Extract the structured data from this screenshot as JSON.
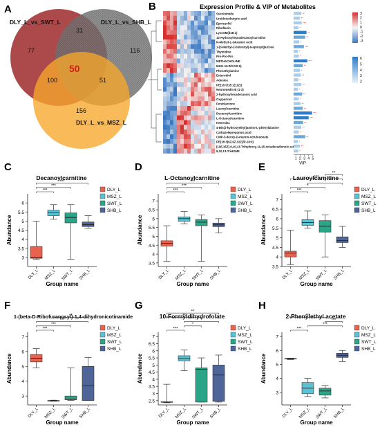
{
  "panel_letters": [
    "A",
    "B",
    "C",
    "D",
    "E",
    "F",
    "G",
    "H"
  ],
  "venn": {
    "sets": [
      {
        "label": "DLY_L_vs_SWT_L",
        "color": "#9e2a2b"
      },
      {
        "label": "DLY_L_vs_SHB_L",
        "color": "#6f6f6f"
      },
      {
        "label": "DLY_L_vs_MSZ_L",
        "color": "#f7a62c"
      }
    ],
    "counts": {
      "swt_only": "77",
      "shb_only": "116",
      "msz_only": "156",
      "swt_shb": "31",
      "swt_msz": "100",
      "shb_msz": "51",
      "all": "50"
    }
  },
  "heatmap": {
    "title": "Expression Profile & VIP of Metabolites",
    "metabolites": [
      "Succinimide",
      "Ureidoisobutyric acid",
      "Eperezolid",
      "Riboflavin",
      "LysoSM(d18:1)",
      "12-Hydroxyheptadecanoylcarnitine",
      "N-Methyl-L-Glutamic Acid",
      "1-(3-Methyl-2-butenoyl)-6-apiosylglucose",
      "Thymidine",
      "Pro-Pro-Pro",
      "METHACHOLINE",
      "MGG-15:0/0:0/0:0)",
      "Phenethylamine",
      "Enterodiol",
      "Adenine",
      "PE(16:0/18:1(11Z))",
      "Neuromedin B (1-3)",
      "2-hydroxyhexadecanoic acid",
      "Oxypurinol",
      "Pentolactone",
      "Lauroylcarnitine",
      "Decanoylcarnitine",
      "L-Octanoylcarnitine",
      "Ketorolac",
      "4-Bis(2-hydroxyethyl)amino-L-phenylalanine",
      "Carbazeleprepanoic acid",
      "CMP-3-deoxy-D-manno-octulosonate",
      "PE(18:3(6Z,9Z,12Z)/P-18:0)",
      "(11E,15Z)-9,10,13-Trihydroxy-11,15-octadecadienoic acid",
      "9,10,13-TriHOME"
    ],
    "vip": [
      2.3,
      2.0,
      2.4,
      1.6,
      3.5,
      3.2,
      1.8,
      2.9,
      1.5,
      1.7,
      3.7,
      2.6,
      2.0,
      2.2,
      1.6,
      2.3,
      1.5,
      2.5,
      1.7,
      2.1,
      2.6,
      4.8,
      4.0,
      2.7,
      2.3,
      1.7,
      3.2,
      1.5,
      2.0,
      1.6
    ],
    "sig": [
      "**",
      "**",
      "***",
      "*",
      "**",
      "**",
      "*",
      "***",
      "*",
      "*",
      "***",
      "**",
      "*",
      "**",
      "*",
      "**",
      "*",
      "**",
      "*",
      "**",
      "**",
      "***",
      "***",
      "**",
      "**",
      "*",
      "**",
      "*",
      "**",
      "*"
    ],
    "vip_axis_label": "VIP",
    "vip_ticks": [
      "1",
      "2",
      "3",
      "4",
      "5"
    ],
    "legend_top": [
      "3",
      "2",
      "1",
      "0",
      "-1",
      "-2",
      "-3"
    ],
    "legend_bottom": [
      "6",
      "5",
      "4",
      "3",
      "2"
    ],
    "colors": {
      "low": "#3a78c1",
      "mid": "#f5f5f5",
      "high": "#d7312f"
    }
  },
  "chart_data": [
    {
      "type": "box",
      "panel": "C",
      "title": "Decanoylcarnitine",
      "xlabel": "Group name",
      "ylabel": "Abundance",
      "ylim": [
        2.5,
        6.5
      ],
      "yticks": [
        "3",
        "3.5",
        "4",
        "4.5",
        "5",
        "5.5",
        "6"
      ],
      "categories": [
        "DLY_L",
        "MSZ_L",
        "SWT_L",
        "SHB_L"
      ],
      "boxes": [
        {
          "min": 2.9,
          "q1": 2.95,
          "median": 3.0,
          "q3": 3.6,
          "max": 5.0
        },
        {
          "min": 5.1,
          "q1": 5.3,
          "median": 5.45,
          "q3": 5.6,
          "max": 5.9
        },
        {
          "min": 2.9,
          "q1": 4.9,
          "median": 5.2,
          "q3": 5.45,
          "max": 5.9
        },
        {
          "min": 4.6,
          "q1": 4.7,
          "median": 4.8,
          "q3": 4.95,
          "max": 5.3
        }
      ],
      "brackets": [
        {
          "from": 0,
          "to": 1,
          "label": "***"
        },
        {
          "from": 0,
          "to": 2,
          "label": "***"
        },
        {
          "from": 0,
          "to": 3,
          "label": "***"
        }
      ]
    },
    {
      "type": "box",
      "panel": "D",
      "title": "L-Octanoylcarnitine",
      "xlabel": "Group name",
      "ylabel": "Abundance",
      "ylim": [
        3.3,
        7.4
      ],
      "yticks": [
        "3.5",
        "4",
        "4.5",
        "5",
        "5.5",
        "6",
        "6.5",
        "7"
      ],
      "categories": [
        "DLY_L",
        "MSZ_L",
        "SWT_L",
        "SHB_L"
      ],
      "boxes": [
        {
          "min": 3.6,
          "q1": 4.45,
          "median": 4.6,
          "q3": 4.75,
          "max": 5.6
        },
        {
          "min": 5.7,
          "q1": 5.85,
          "median": 6.0,
          "q3": 6.1,
          "max": 6.4
        },
        {
          "min": 3.6,
          "q1": 5.6,
          "median": 5.8,
          "q3": 5.95,
          "max": 6.2
        },
        {
          "min": 5.2,
          "q1": 5.55,
          "median": 5.65,
          "q3": 5.75,
          "max": 6.0
        }
      ],
      "brackets": [
        {
          "from": 0,
          "to": 1,
          "label": "***"
        },
        {
          "from": 0,
          "to": 2,
          "label": "***"
        },
        {
          "from": 0,
          "to": 3,
          "label": "***"
        }
      ]
    },
    {
      "type": "box",
      "panel": "E",
      "title": "Lauroylcarnitine",
      "xlabel": "Group name",
      "ylabel": "Abundance",
      "ylim": [
        3.5,
        7.3
      ],
      "yticks": [
        "3.5",
        "4",
        "4.5",
        "5",
        "5.5",
        "6",
        "6.5",
        "7"
      ],
      "categories": [
        "DLY_L",
        "MSZ_L",
        "SWT_L",
        "SHB_L"
      ],
      "boxes": [
        {
          "min": 3.6,
          "q1": 4.0,
          "median": 4.2,
          "q3": 4.3,
          "max": 5.4
        },
        {
          "min": 5.5,
          "q1": 5.65,
          "median": 5.8,
          "q3": 5.95,
          "max": 6.4
        },
        {
          "min": 4.0,
          "q1": 5.3,
          "median": 5.6,
          "q3": 5.9,
          "max": 6.2
        },
        {
          "min": 4.5,
          "q1": 4.75,
          "median": 4.85,
          "q3": 5.05,
          "max": 5.6
        }
      ],
      "brackets": [
        {
          "from": 0,
          "to": 1,
          "label": "***"
        },
        {
          "from": 0,
          "to": 2,
          "label": "*"
        },
        {
          "from": 1,
          "to": 3,
          "label": "*"
        },
        {
          "from": 0,
          "to": 3,
          "label": "***"
        },
        {
          "from": 2,
          "to": 3,
          "label": "**"
        }
      ]
    },
    {
      "type": "box",
      "panel": "F",
      "title": "1-(beta-D-Ribofuranosyl)-1,4-dihydronicotinamide",
      "xlabel": "Group name",
      "ylabel": "Abundance",
      "ylim": [
        2.4,
        7.3
      ],
      "yticks": [
        "3",
        "4",
        "5",
        "6",
        "7"
      ],
      "categories": [
        "DLY_L",
        "MSZ_L",
        "SWT_L",
        "SHB_L"
      ],
      "boxes": [
        {
          "min": 4.9,
          "q1": 5.3,
          "median": 5.55,
          "q3": 5.8,
          "max": 6.2
        },
        {
          "min": 2.65,
          "q1": 2.67,
          "median": 2.68,
          "q3": 2.7,
          "max": 2.72
        },
        {
          "min": 2.7,
          "q1": 2.75,
          "median": 2.8,
          "q3": 3.0,
          "max": 4.9
        },
        {
          "min": 2.7,
          "q1": 2.7,
          "median": 3.7,
          "q3": 5.0,
          "max": 5.6
        }
      ],
      "brackets": [
        {
          "from": 0,
          "to": 1,
          "label": "***"
        },
        {
          "from": 0,
          "to": 2,
          "label": "***"
        },
        {
          "from": 0,
          "to": 3,
          "label": "***"
        },
        {
          "from": 1,
          "to": 3,
          "label": "**"
        }
      ]
    },
    {
      "type": "box",
      "panel": "G",
      "title": "10-Formyldihydrofolate",
      "xlabel": "Group name",
      "ylabel": "Abundance",
      "ylim": [
        2.2,
        7.3
      ],
      "yticks": [
        "2.5",
        "3",
        "3.5",
        "4",
        "4.5",
        "5",
        "5.5",
        "6",
        "6.5",
        "7"
      ],
      "categories": [
        "DLY_L",
        "MSZ_L",
        "SWT_L",
        "SHB_L"
      ],
      "boxes": [
        {
          "min": 2.35,
          "q1": 2.38,
          "median": 2.4,
          "q3": 2.42,
          "max": 3.65
        },
        {
          "min": 4.6,
          "q1": 5.3,
          "median": 5.45,
          "q3": 5.65,
          "max": 6.05
        },
        {
          "min": 2.4,
          "q1": 2.4,
          "median": 4.7,
          "q3": 4.8,
          "max": 5.5
        },
        {
          "min": 2.4,
          "q1": 2.45,
          "median": 4.3,
          "q3": 5.0,
          "max": 5.7
        }
      ],
      "brackets": [
        {
          "from": 0,
          "to": 1,
          "label": "***"
        },
        {
          "from": 1,
          "to": 2,
          "label": "*"
        },
        {
          "from": 1,
          "to": 3,
          "label": "*"
        },
        {
          "from": 0,
          "to": 2,
          "label": "**"
        },
        {
          "from": 0,
          "to": 3,
          "label": "**"
        }
      ]
    },
    {
      "type": "box",
      "panel": "H",
      "title": "2-Phenylethyl acetate",
      "xlabel": "Group name",
      "ylabel": "Abundance",
      "ylim": [
        2.1,
        7.3
      ],
      "yticks": [
        "3",
        "4",
        "5",
        "6",
        "7"
      ],
      "categories": [
        "DLY_L",
        "MSZ_L",
        "SWT_L",
        "SHB_L"
      ],
      "boxes": [
        {
          "min": 5.35,
          "q1": 5.38,
          "median": 5.4,
          "q3": 5.42,
          "max": 5.45
        },
        {
          "min": 2.7,
          "q1": 2.9,
          "median": 3.3,
          "q3": 3.7,
          "max": 4.0
        },
        {
          "min": 2.6,
          "q1": 2.8,
          "median": 3.1,
          "q3": 3.3,
          "max": 3.5
        },
        {
          "min": 5.2,
          "q1": 5.5,
          "median": 5.65,
          "q3": 5.8,
          "max": 6.0
        }
      ],
      "brackets": [
        {
          "from": 0,
          "to": 1,
          "label": "***"
        },
        {
          "from": 1,
          "to": 3,
          "label": "***"
        },
        {
          "from": 2,
          "to": 3,
          "label": "***"
        },
        {
          "from": 0,
          "to": 2,
          "label": "***"
        }
      ]
    }
  ],
  "box_colors": {
    "DLY_L": "#e8634f",
    "MSZ_L": "#5bc2d6",
    "SWT_L": "#2aa587",
    "SHB_L": "#4f6598"
  }
}
